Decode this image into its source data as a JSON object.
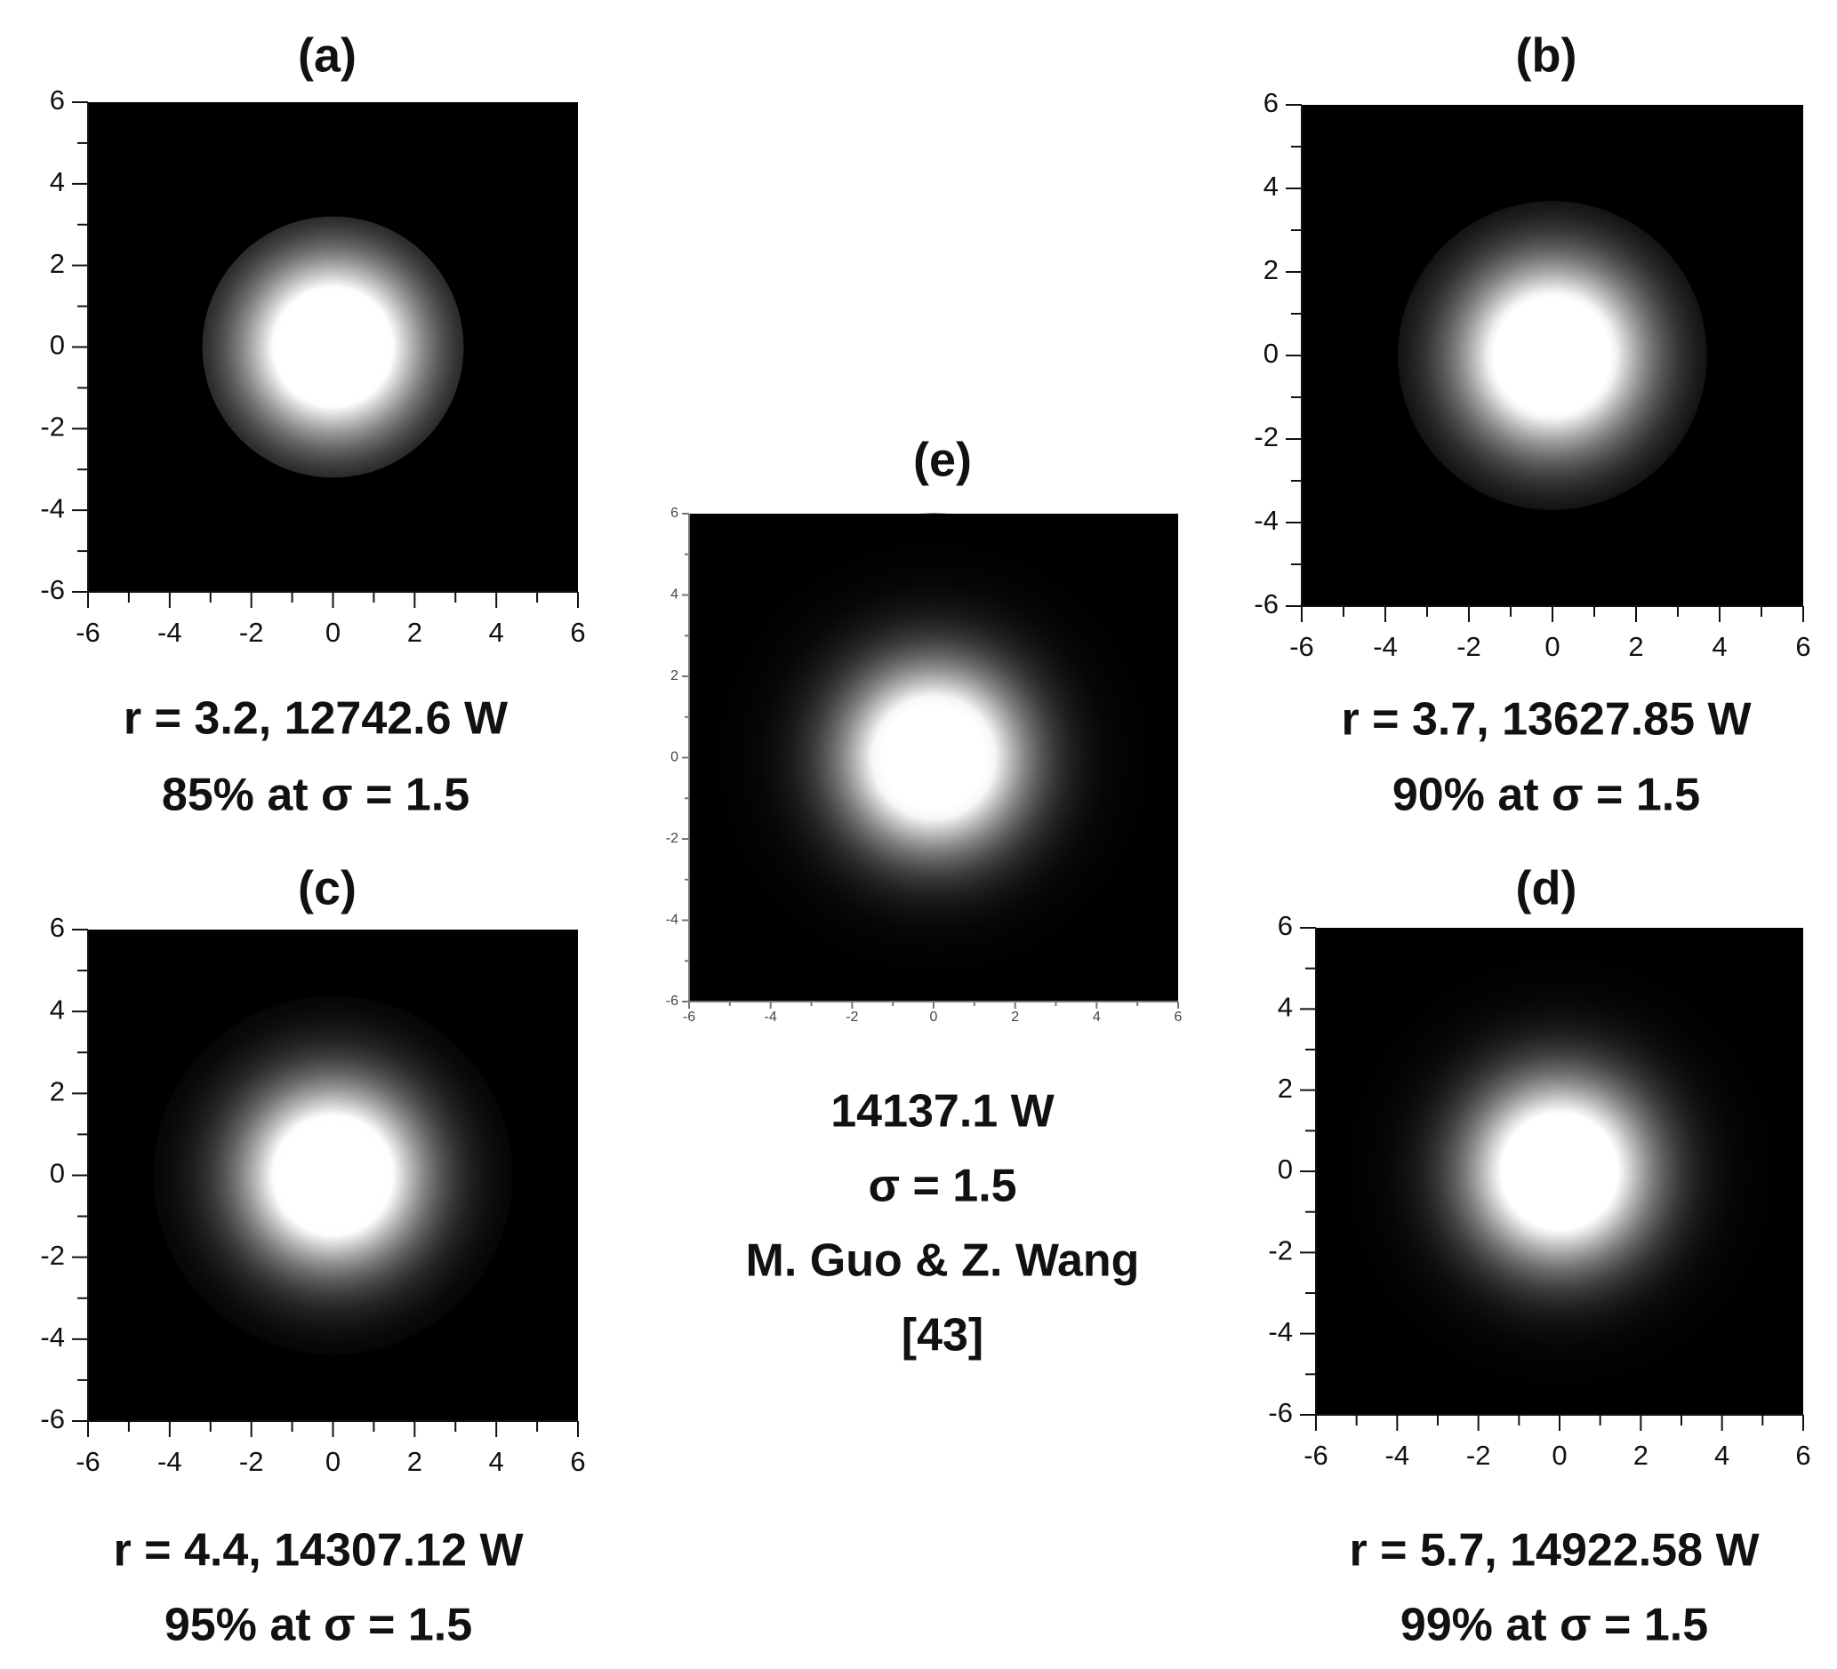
{
  "chart_data": [
    {
      "type": "heatmap",
      "title": "(a)",
      "caption": [
        "r = 3.2, 12742.6 W",
        "85% at σ = 1.5"
      ],
      "radius": 3.2,
      "sigma": 1.5,
      "xlim": [
        -6,
        6
      ],
      "ylim": [
        -6,
        6
      ],
      "xticks": [
        -6,
        -4,
        -2,
        0,
        2,
        4,
        6
      ],
      "yticks": [
        -6,
        -4,
        -2,
        0,
        2,
        4,
        6
      ]
    },
    {
      "type": "heatmap",
      "title": "(b)",
      "caption": [
        "r = 3.7, 13627.85 W",
        "90% at σ = 1.5"
      ],
      "radius": 3.7,
      "sigma": 1.5,
      "xlim": [
        -6,
        6
      ],
      "ylim": [
        -6,
        6
      ],
      "xticks": [
        -6,
        -4,
        -2,
        0,
        2,
        4,
        6
      ],
      "yticks": [
        -6,
        -4,
        -2,
        0,
        2,
        4,
        6
      ]
    },
    {
      "type": "heatmap",
      "title": "(c)",
      "caption": [
        "r = 4.4, 14307.12 W",
        "95% at σ = 1.5"
      ],
      "radius": 4.4,
      "sigma": 1.5,
      "xlim": [
        -6,
        6
      ],
      "ylim": [
        -6,
        6
      ],
      "xticks": [
        -6,
        -4,
        -2,
        0,
        2,
        4,
        6
      ],
      "yticks": [
        -6,
        -4,
        -2,
        0,
        2,
        4,
        6
      ]
    },
    {
      "type": "heatmap",
      "title": "(d)",
      "caption": [
        "r = 5.7, 14922.58 W",
        "99% at σ = 1.5"
      ],
      "radius": 5.7,
      "sigma": 1.5,
      "xlim": [
        -6,
        6
      ],
      "ylim": [
        -6,
        6
      ],
      "xticks": [
        -6,
        -4,
        -2,
        0,
        2,
        4,
        6
      ],
      "yticks": [
        -6,
        -4,
        -2,
        0,
        2,
        4,
        6
      ]
    },
    {
      "type": "heatmap",
      "title": "(e)",
      "caption": [
        "14137.1 W",
        "σ = 1.5",
        "M. Guo & Z. Wang",
        "[43]"
      ],
      "sigma": 1.5,
      "xlim": [
        -6,
        6
      ],
      "ylim": [
        -6,
        6
      ],
      "xticks": [
        -6,
        -4,
        -2,
        0,
        2,
        4,
        6
      ],
      "yticks": [
        -6,
        -4,
        -2,
        0,
        2,
        4,
        6
      ]
    }
  ]
}
